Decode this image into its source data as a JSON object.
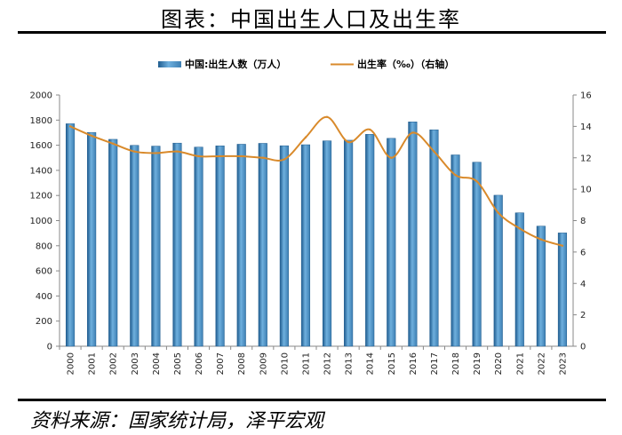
{
  "title": "图表：中国出生人口及出生率",
  "source": "资料来源：国家统计局，泽平宏观",
  "colors": {
    "bar": "#3d7fb3",
    "line": "#d98a2b"
  },
  "chart_data": {
    "type": "bar+line",
    "categories": [
      "2000",
      "2001",
      "2002",
      "2003",
      "2004",
      "2005",
      "2006",
      "2007",
      "2008",
      "2009",
      "2010",
      "2011",
      "2012",
      "2013",
      "2014",
      "2015",
      "2016",
      "2017",
      "2018",
      "2019",
      "2020",
      "2021",
      "2022",
      "2023"
    ],
    "series": [
      {
        "name": "中国:出生人数（万人）",
        "type": "bar",
        "axis": "left",
        "values": [
          1771,
          1702,
          1647,
          1599,
          1593,
          1617,
          1585,
          1595,
          1608,
          1615,
          1596,
          1604,
          1635,
          1640,
          1687,
          1655,
          1786,
          1723,
          1523,
          1465,
          1202,
          1062,
          956,
          902
        ]
      },
      {
        "name": "出生率（‰）（右轴）",
        "type": "line",
        "axis": "right",
        "values": [
          14.0,
          13.4,
          12.9,
          12.4,
          12.3,
          12.4,
          12.1,
          12.1,
          12.1,
          12.0,
          11.9,
          13.3,
          14.6,
          13.0,
          13.8,
          12.0,
          13.6,
          12.4,
          10.9,
          10.5,
          8.5,
          7.5,
          6.8,
          6.4
        ]
      }
    ],
    "y_left": {
      "min": 0,
      "max": 2000,
      "step": 200
    },
    "y_right": {
      "min": 0,
      "max": 16,
      "step": 2
    },
    "legend_placement": "top-center",
    "grid": false
  }
}
